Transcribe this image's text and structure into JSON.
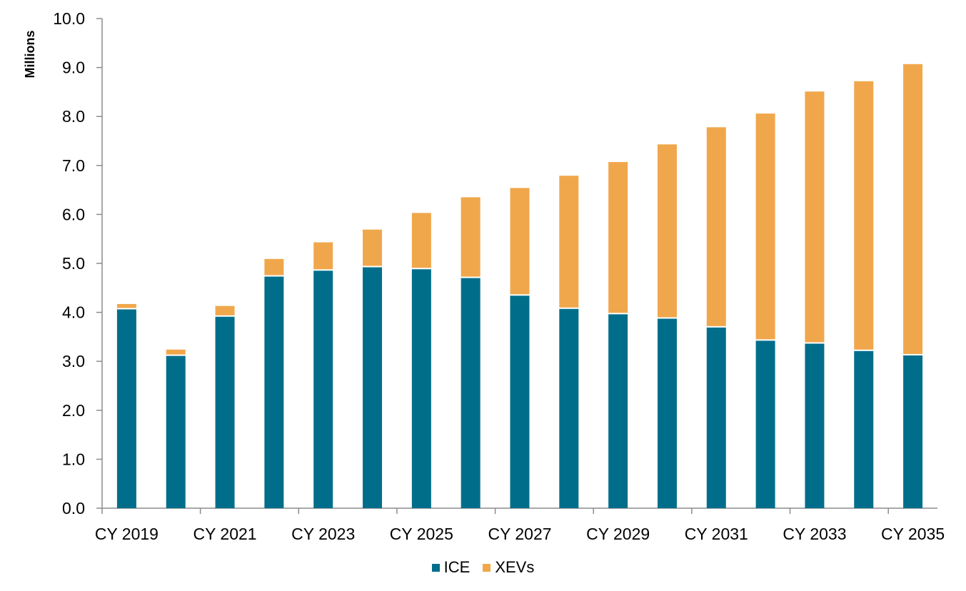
{
  "chart_data": {
    "type": "bar",
    "stacked": true,
    "title": "",
    "xlabel": "",
    "ylabel": "Millions",
    "ylim": [
      0,
      10
    ],
    "yticks": [
      "0.0",
      "1.0",
      "2.0",
      "3.0",
      "4.0",
      "5.0",
      "6.0",
      "7.0",
      "8.0",
      "9.0",
      "10.0"
    ],
    "categories": [
      "CY 2019",
      "CY 2020",
      "CY 2021",
      "CY 2022",
      "CY 2023",
      "CY 2024",
      "CY 2025",
      "CY 2026",
      "CY 2027",
      "CY 2028",
      "CY 2029",
      "CY 2030",
      "CY 2031",
      "CY 2032",
      "CY 2033",
      "CY 2034",
      "CY 2035"
    ],
    "xtick_labels_shown": [
      "CY 2019",
      "CY 2021",
      "CY 2023",
      "CY 2025",
      "CY 2027",
      "CY 2029",
      "CY 2031",
      "CY 2033",
      "CY 2035"
    ],
    "series": [
      {
        "name": "ICE",
        "color": "#006E8A",
        "values": [
          4.06,
          3.11,
          3.91,
          4.73,
          4.85,
          4.92,
          4.88,
          4.7,
          4.34,
          4.07,
          3.96,
          3.87,
          3.69,
          3.42,
          3.36,
          3.21,
          3.12
        ]
      },
      {
        "name": "XEVs",
        "color": "#F0A74B",
        "values": [
          0.11,
          0.13,
          0.22,
          0.36,
          0.58,
          0.77,
          1.15,
          1.65,
          2.2,
          2.72,
          3.11,
          3.56,
          4.09,
          4.64,
          5.15,
          5.51,
          5.95
        ]
      }
    ],
    "totals": [
      4.17,
      3.24,
      4.13,
      5.09,
      5.43,
      5.69,
      6.03,
      6.35,
      6.54,
      6.79,
      7.07,
      7.43,
      7.78,
      8.06,
      8.51,
      8.72,
      9.07
    ],
    "grid": false,
    "legend_position": "bottom"
  },
  "legend": {
    "items": [
      {
        "label": "ICE",
        "color": "#006E8A"
      },
      {
        "label": "XEVs",
        "color": "#F0A74B"
      }
    ]
  }
}
